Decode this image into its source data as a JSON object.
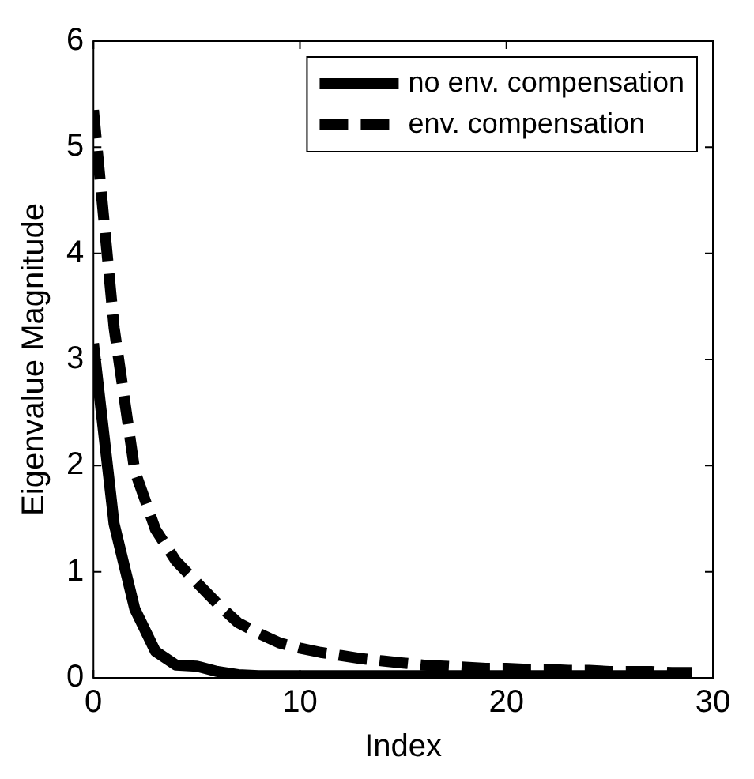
{
  "chart_data": {
    "type": "line",
    "xlabel": "Index",
    "ylabel": "Eigenvalue Magnitude",
    "x": [
      0,
      1,
      2,
      3,
      4,
      5,
      6,
      7,
      8,
      9,
      10,
      11,
      12,
      13,
      14,
      15,
      16,
      17,
      18,
      19,
      20,
      21,
      22,
      23,
      24,
      25,
      26,
      27,
      28,
      29
    ],
    "series": [
      {
        "name": "no env. compensation",
        "color": "#000000",
        "line_style": "solid",
        "values": [
          3.15,
          1.45,
          0.65,
          0.25,
          0.12,
          0.11,
          0.06,
          0.03,
          0.02,
          0.02,
          0.02,
          0.02,
          0.02,
          0.02,
          0.02,
          0.02,
          0.02,
          0.02,
          0.02,
          0.02,
          0.02,
          0.02,
          0.02,
          0.02,
          0.02,
          0.02,
          0.02,
          0.02,
          0.02,
          0.02
        ]
      },
      {
        "name": "env. compensation",
        "color": "#000000",
        "line_style": "dashed",
        "values": [
          5.35,
          3.3,
          1.95,
          1.4,
          1.1,
          0.9,
          0.7,
          0.52,
          0.42,
          0.33,
          0.28,
          0.24,
          0.21,
          0.18,
          0.16,
          0.14,
          0.12,
          0.11,
          0.1,
          0.09,
          0.09,
          0.08,
          0.08,
          0.07,
          0.07,
          0.06,
          0.06,
          0.06,
          0.05,
          0.05
        ]
      }
    ],
    "xlim": [
      0,
      30
    ],
    "xticks": [
      0,
      10,
      20,
      30
    ],
    "ylim": [
      0,
      6
    ],
    "yticks": [
      0,
      1,
      2,
      3,
      4,
      5,
      6
    ],
    "grid": false,
    "legend": "top right",
    "marker": "none"
  }
}
